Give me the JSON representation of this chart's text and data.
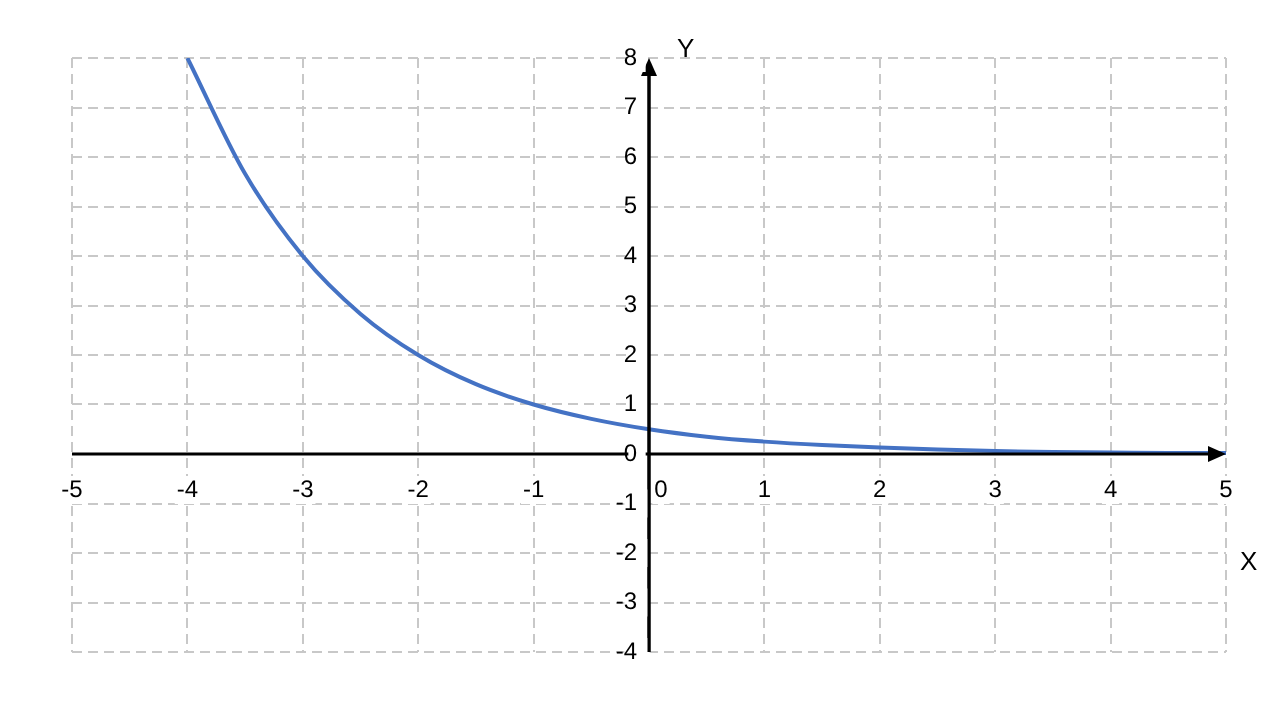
{
  "chart_data": {
    "type": "line",
    "xlabel": "X",
    "ylabel": "Y",
    "series": [
      {
        "color": "#4472c4",
        "x": [
          -4,
          -3.5,
          -3,
          -2.5,
          -2,
          -1.5,
          -1,
          -0.5,
          0,
          0.5,
          1,
          1.5,
          2,
          2.5,
          3,
          3.5,
          4,
          4.5,
          5
        ],
        "values": [
          8,
          5.66,
          4,
          2.83,
          2,
          1.41,
          1,
          0.71,
          0.5,
          0.35,
          0.25,
          0.18,
          0.13,
          0.09,
          0.06,
          0.04,
          0.03,
          0.02,
          0.02
        ]
      }
    ],
    "xlim": [
      -5,
      5
    ],
    "xticks": [
      -5,
      -4,
      -3,
      -2,
      -1,
      0,
      1,
      2,
      3,
      4,
      5
    ],
    "ylim": [
      -4,
      8
    ],
    "yticks": [
      -4,
      -3,
      -2,
      -1,
      0,
      1,
      2,
      3,
      4,
      5,
      6,
      7,
      8
    ],
    "grid": true,
    "marker": "none",
    "line_style": "solid",
    "legend": false
  }
}
